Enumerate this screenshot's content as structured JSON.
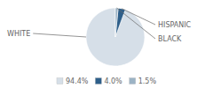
{
  "chart_data": {
    "type": "pie",
    "categories": [
      "WHITE",
      "HISPANIC",
      "BLACK"
    ],
    "values": [
      94.4,
      4.0,
      1.5
    ],
    "value_labels": [
      "94.4%",
      "4.0%",
      "1.5%"
    ],
    "colors": [
      "#d6dfe8",
      "#2e5f8a",
      "#9cb3c5"
    ],
    "legend": "bottom"
  }
}
